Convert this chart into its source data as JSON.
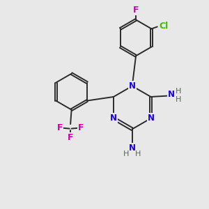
{
  "bg_color": "#e8e8e8",
  "bond_color": "#2a2a2a",
  "N_color": "#1a00dd",
  "F_color": "#cc00aa",
  "Cl_color": "#44bb00",
  "H_color": "#556655",
  "bond_width": 1.4,
  "figsize": [
    3.0,
    3.0
  ],
  "dpi": 100,
  "xlim": [
    0,
    10
  ],
  "ylim": [
    0,
    10
  ]
}
